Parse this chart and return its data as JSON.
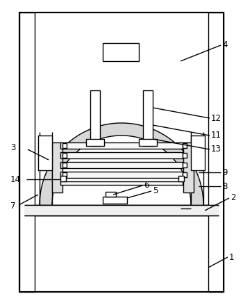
{
  "bg_color": "#ffffff",
  "line_color": "#000000",
  "fig_width": 3.5,
  "fig_height": 4.36,
  "dpi": 100
}
